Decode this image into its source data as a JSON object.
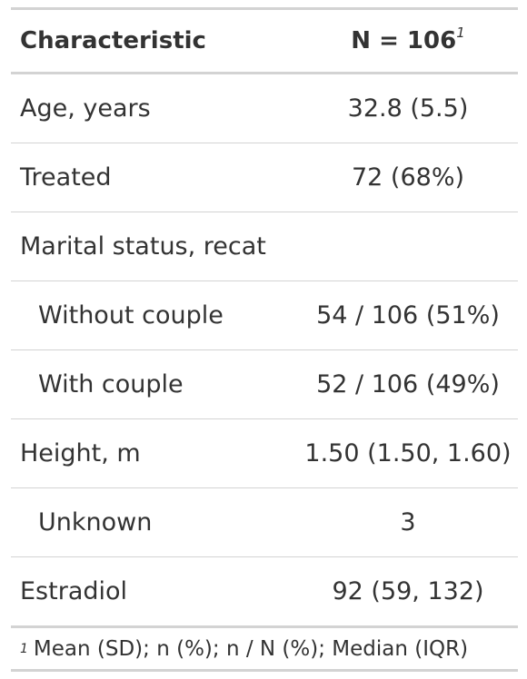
{
  "table": {
    "header": {
      "characteristic": "Characteristic",
      "n_label": "N = 106",
      "n_footnote_marker": "1"
    },
    "rows": [
      {
        "label": "Age, years",
        "value": "32.8 (5.5)"
      },
      {
        "label": "Treated",
        "value": "72 (68%)"
      },
      {
        "label": "Marital status, recat",
        "value": ""
      },
      {
        "label": "Without couple",
        "value": "54 / 106 (51%)"
      },
      {
        "label": "With couple",
        "value": "52 / 106 (49%)"
      },
      {
        "label": "Height, m",
        "value": "1.50 (1.50, 1.60)"
      },
      {
        "label": "Unknown",
        "value": "3"
      },
      {
        "label": "Estradiol",
        "value": "92 (59, 132)"
      }
    ],
    "footnote": {
      "marker": "1",
      "text": "Mean (SD); n (%); n / N (%); Median (IQR)"
    }
  }
}
